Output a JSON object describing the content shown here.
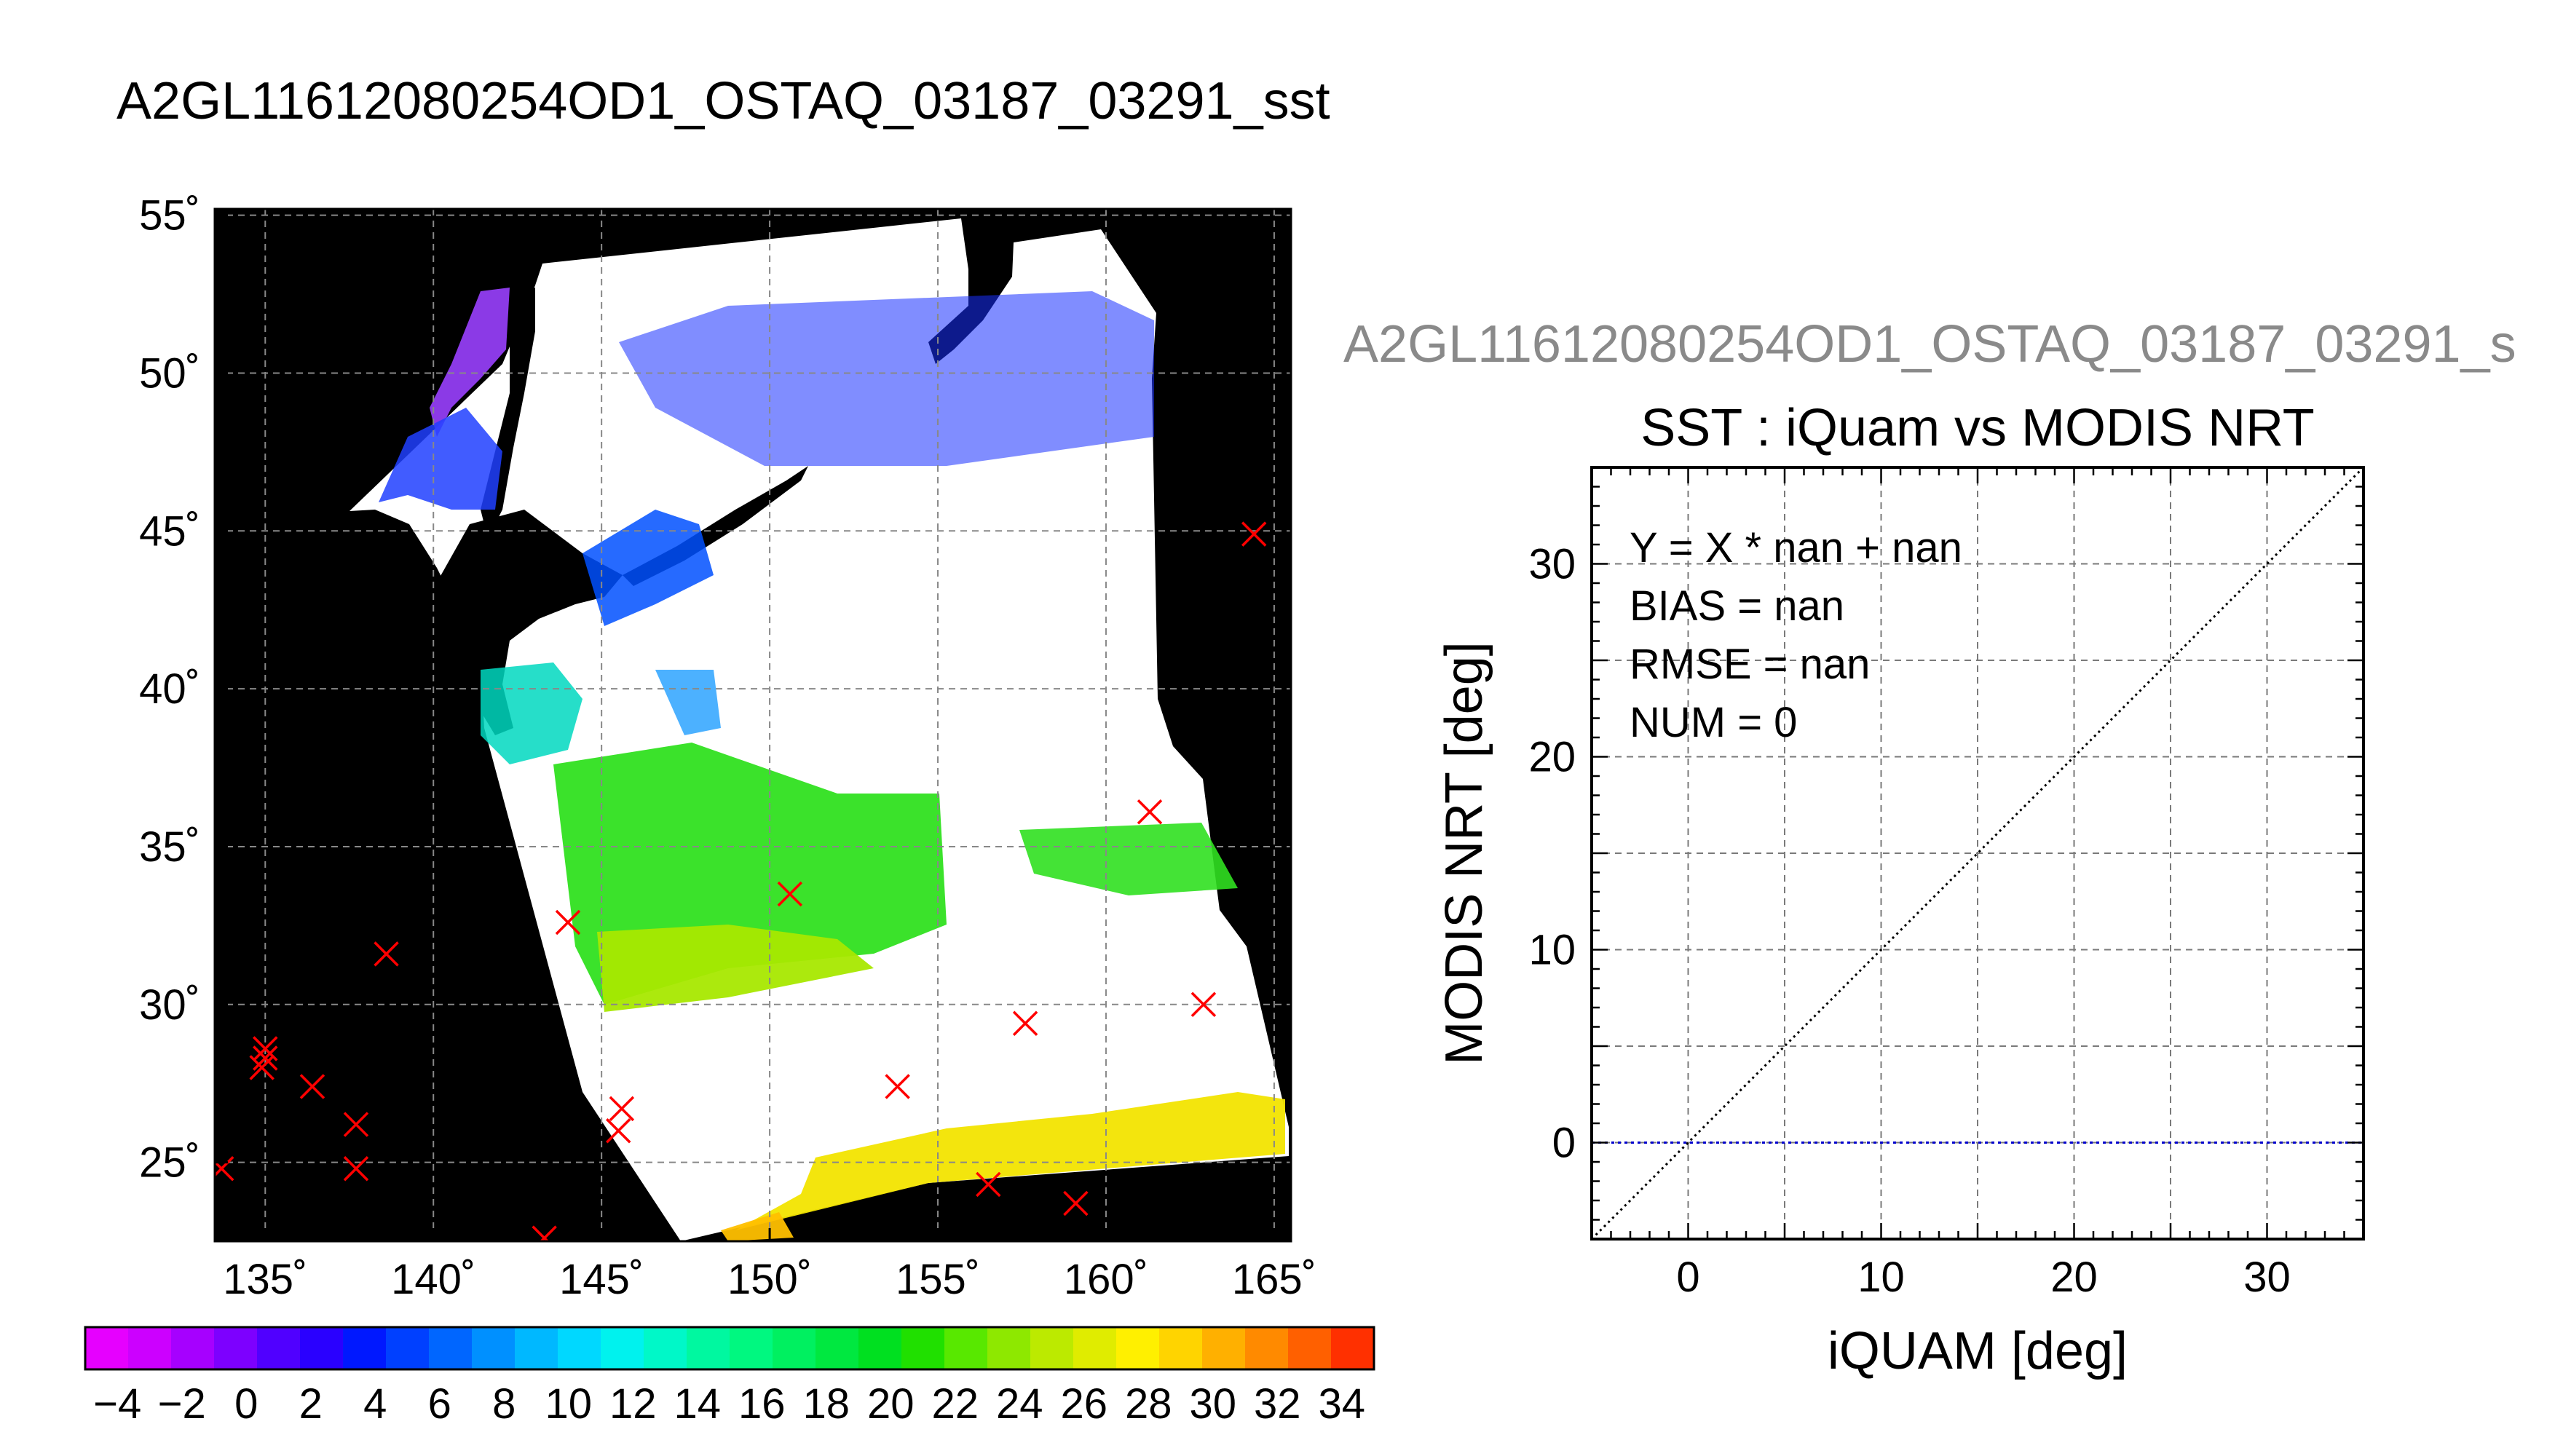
{
  "title": "A2GL11612080254OD1_OSTAQ_03187_03291_sst",
  "map": {
    "lat_ticks": [
      "55˚",
      "50˚",
      "45˚",
      "40˚",
      "35˚",
      "30˚",
      "25˚"
    ],
    "lat_values": [
      55,
      50,
      45,
      40,
      35,
      30,
      25
    ],
    "lon_ticks": [
      "135˚",
      "140˚",
      "145˚",
      "150˚",
      "155˚",
      "160˚",
      "165˚"
    ],
    "lon_values": [
      135,
      140,
      145,
      150,
      155,
      160,
      165
    ],
    "extent": {
      "lon": [
        133.5,
        165.5
      ],
      "lat": [
        22.5,
        55.2
      ]
    },
    "grid": true,
    "background_color": "#000000",
    "cloud_color": "#ffffff",
    "marker_color": "#ff0000",
    "markers": [
      {
        "lon": 164.4,
        "lat": 44.9
      },
      {
        "lon": 161.3,
        "lat": 36.1
      },
      {
        "lon": 150.6,
        "lat": 33.5
      },
      {
        "lon": 144.0,
        "lat": 32.6
      },
      {
        "lon": 138.6,
        "lat": 31.6
      },
      {
        "lon": 162.9,
        "lat": 30.0
      },
      {
        "lon": 157.6,
        "lat": 29.4
      },
      {
        "lon": 153.8,
        "lat": 27.4
      },
      {
        "lon": 145.6,
        "lat": 26.7
      },
      {
        "lon": 145.5,
        "lat": 26.0
      },
      {
        "lon": 156.5,
        "lat": 24.3
      },
      {
        "lon": 159.1,
        "lat": 23.7
      },
      {
        "lon": 143.3,
        "lat": 22.6
      },
      {
        "lon": 135.0,
        "lat": 28.6
      },
      {
        "lon": 135.0,
        "lat": 28.3
      },
      {
        "lon": 134.9,
        "lat": 28.0
      },
      {
        "lon": 136.4,
        "lat": 27.4
      },
      {
        "lon": 137.7,
        "lat": 26.2
      },
      {
        "lon": 137.7,
        "lat": 24.8
      },
      {
        "lon": 133.7,
        "lat": 24.8
      }
    ]
  },
  "colorbar": {
    "tick_labels": [
      "−4",
      "−2",
      "0",
      "2",
      "4",
      "6",
      "8",
      "10",
      "12",
      "14",
      "16",
      "18",
      "20",
      "22",
      "24",
      "26",
      "28",
      "30",
      "32",
      "34"
    ],
    "range": [
      -5,
      35
    ],
    "colors": [
      "#e600ff",
      "#cc00ff",
      "#a600ff",
      "#7d00ff",
      "#5000ff",
      "#2a00ff",
      "#0018ff",
      "#0040ff",
      "#0066ff",
      "#0090ff",
      "#00b8ff",
      "#00d8ff",
      "#00f2ee",
      "#00f8c8",
      "#00f8a0",
      "#00f880",
      "#00f060",
      "#00e840",
      "#00e020",
      "#20e000",
      "#58e800",
      "#8ee800",
      "#bcea00",
      "#e0ec00",
      "#fff000",
      "#ffd400",
      "#ffb000",
      "#ff8a00",
      "#ff6000",
      "#ff3000"
    ]
  },
  "chart_data": [
    {
      "type": "map",
      "xlabel": "",
      "ylabel": "",
      "note": "SST swath map"
    },
    {
      "type": "scatter",
      "title": "SST : iQuam vs MODIS NRT",
      "xlabel": "iQUAM [deg]",
      "ylabel": "MODIS NRT [deg]",
      "xlim": [
        -5,
        35
      ],
      "ylim": [
        -5,
        35
      ],
      "x_ticks": [
        "0",
        "10",
        "20",
        "30"
      ],
      "x_tick_values": [
        0,
        10,
        20,
        30
      ],
      "y_ticks": [
        "0",
        "10",
        "20",
        "30"
      ],
      "y_tick_values": [
        0,
        10,
        20,
        30
      ],
      "grid": true,
      "points": [],
      "reference_line": {
        "type": "y=x",
        "style": "dotted",
        "color": "#000000"
      },
      "fit_line": {
        "type": "y=0",
        "style": "dotted",
        "color": "#0000cc"
      },
      "annotations": [
        "Y = X * nan + nan",
        "BIAS = nan",
        "RMSE = nan",
        "NUM = 0"
      ],
      "gray_title": "A2GL11612080254OD1_OSTAQ_03187_03291_s"
    }
  ]
}
